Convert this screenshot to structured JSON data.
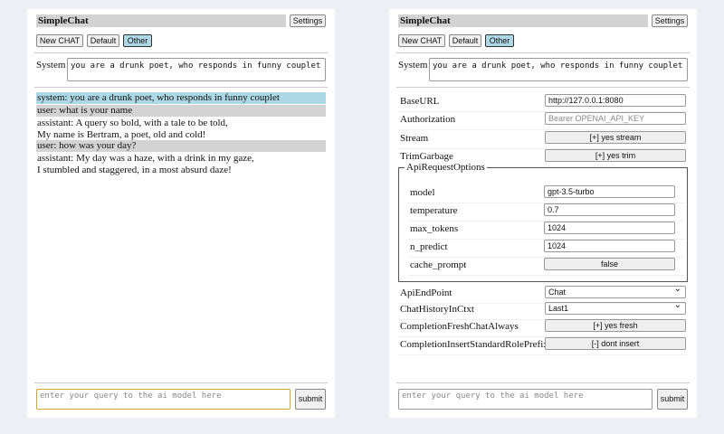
{
  "app": {
    "title": "SimpleChat",
    "settings_label": "Settings",
    "buttons": [
      "New CHAT",
      "Default",
      "Other"
    ],
    "selected": "Other",
    "system_label": "System",
    "system_value": "you are a drunk poet, who responds in funny couplet",
    "query_placeholder": "enter your query to the ai model here",
    "submit_label": "submit"
  },
  "chat": [
    {
      "role": "system",
      "text": "system: you are a drunk poet, who responds in funny couplet"
    },
    {
      "role": "user",
      "text": "user: what is your name"
    },
    {
      "role": "assistant",
      "text": "assistant: A query so bold, with a tale to be told,",
      "text2": "My name is Bertram, a poet, old and cold!"
    },
    {
      "role": "user",
      "text": "user: how was your day?"
    },
    {
      "role": "assistant",
      "text": "assistant: My day was a haze, with a drink in my gaze,",
      "text2": "I stumbled and staggered, in a most absurd daze!"
    }
  ],
  "settings": {
    "base_url": {
      "label": "BaseURL",
      "value": "http://127.0.0.1:8080"
    },
    "authorization": {
      "label": "Authorization",
      "placeholder": "Bearer OPENAI_API_KEY"
    },
    "stream": {
      "label": "Stream",
      "value": "[+] yes stream"
    },
    "trim": {
      "label": "TrimGarbage",
      "value": "[+] yes trim"
    },
    "api_options": {
      "legend": "ApiRequestOptions",
      "model": {
        "label": "model",
        "value": "gpt-3.5-turbo"
      },
      "temperature": {
        "label": "temperature",
        "value": "0.7"
      },
      "max_tokens": {
        "label": "max_tokens",
        "value": "1024"
      },
      "n_predict": {
        "label": "n_predict",
        "value": "1024"
      },
      "cache_prompt": {
        "label": "cache_prompt",
        "value": "false"
      }
    },
    "endpoint": {
      "label": "ApiEndPoint",
      "value": "Chat"
    },
    "history": {
      "label": "ChatHistoryInCtxt",
      "value": "Last1"
    },
    "fresh": {
      "label": "CompletionFreshChatAlways",
      "value": "[+] yes fresh"
    },
    "insert": {
      "label": "CompletionInsertStandardRolePrefix",
      "value": "[-] dont insert"
    }
  }
}
